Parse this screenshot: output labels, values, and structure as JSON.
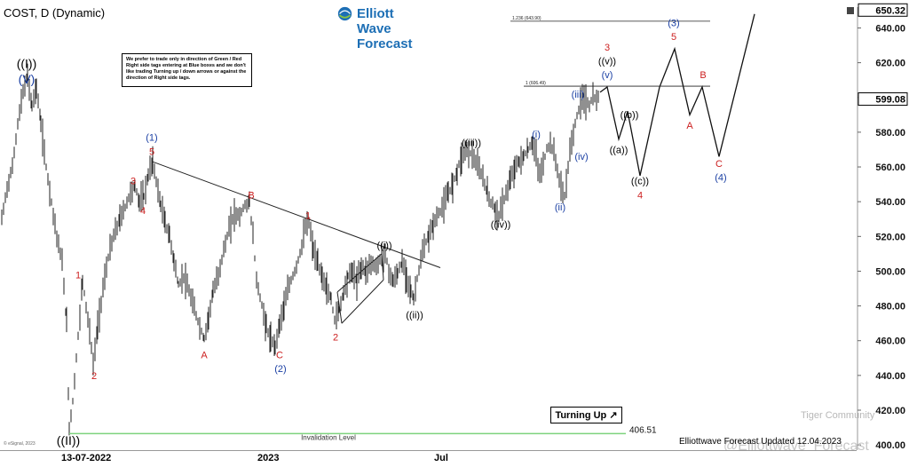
{
  "header": {
    "symbol_label": "COST, D (Dynamic)",
    "brand": "Elliott Wave Forecast",
    "note": "We prefer to trade only in direction of Green / Red Right side tags entering at Blue boxes and we don't like trading Turning up / down arrows or against the direction of Right side tags.",
    "turning_label": "Turning Up",
    "footer": "Elliottwave Forecast Updated 12.04.2023",
    "watermark1": "Tiger Community",
    "watermark2": "@Elliottwave_Forecast",
    "copyright": "© eSignal, 2023",
    "logo_small": "Elliottwave"
  },
  "colors": {
    "red": "#cc1f1f",
    "blue": "#1a3fa3",
    "black": "#000000",
    "green": "#7ed37e",
    "brand": "#1d6fb5"
  },
  "chart_data": {
    "type": "candlestick",
    "symbol": "COST",
    "timeframe": "D",
    "ylim": [
      397,
      652
    ],
    "y_ticks": [
      400,
      420,
      440,
      460,
      480,
      500,
      520,
      540,
      560,
      580,
      600,
      620,
      640
    ],
    "y_tick_labels": [
      "400.00",
      "420.00",
      "440.00",
      "460.00",
      "480.00",
      "500.00",
      "520.00",
      "540.00",
      "560.00",
      "580.00",
      "600.00",
      "620.00",
      "640.00"
    ],
    "x_tick_labels": [
      {
        "label": "13-07-2022",
        "t": 97
      },
      {
        "label": "2023",
        "t": 302
      },
      {
        "label": "Jul",
        "t": 497
      }
    ],
    "price_tags": [
      {
        "label": "650.32",
        "value": 650.32
      },
      {
        "label": "599.08",
        "value": 599.08
      }
    ],
    "x_range": [
      0,
      965
    ],
    "price_path": [
      [
        2,
        530
      ],
      [
        8,
        548
      ],
      [
        14,
        560
      ],
      [
        20,
        585
      ],
      [
        26,
        603
      ],
      [
        31,
        612
      ],
      [
        36,
        595
      ],
      [
        41,
        606
      ],
      [
        46,
        585
      ],
      [
        52,
        560
      ],
      [
        58,
        540
      ],
      [
        64,
        520
      ],
      [
        70,
        505
      ],
      [
        75,
        470
      ],
      [
        78,
        410
      ],
      [
        82,
        425
      ],
      [
        86,
        450
      ],
      [
        90,
        475
      ],
      [
        93,
        495
      ],
      [
        97,
        480
      ],
      [
        101,
        465
      ],
      [
        105,
        446
      ],
      [
        110,
        468
      ],
      [
        116,
        490
      ],
      [
        122,
        508
      ],
      [
        128,
        520
      ],
      [
        135,
        530
      ],
      [
        141,
        537
      ],
      [
        147,
        545
      ],
      [
        152,
        549
      ],
      [
        157,
        540
      ],
      [
        162,
        543
      ],
      [
        167,
        555
      ],
      [
        172,
        563
      ],
      [
        176,
        552
      ],
      [
        181,
        538
      ],
      [
        186,
        528
      ],
      [
        191,
        520
      ],
      [
        196,
        506
      ],
      [
        201,
        492
      ],
      [
        207,
        497
      ],
      [
        213,
        488
      ],
      [
        219,
        478
      ],
      [
        225,
        468
      ],
      [
        230,
        461
      ],
      [
        235,
        474
      ],
      [
        240,
        488
      ],
      [
        246,
        498
      ],
      [
        252,
        512
      ],
      [
        258,
        524
      ],
      [
        264,
        533
      ],
      [
        270,
        532
      ],
      [
        276,
        538
      ],
      [
        281,
        540
      ],
      [
        285,
        520
      ],
      [
        289,
        495
      ],
      [
        295,
        480
      ],
      [
        300,
        468
      ],
      [
        305,
        460
      ],
      [
        310,
        457
      ],
      [
        315,
        470
      ],
      [
        320,
        480
      ],
      [
        326,
        492
      ],
      [
        332,
        500
      ],
      [
        338,
        510
      ],
      [
        344,
        525
      ],
      [
        348,
        528
      ],
      [
        353,
        512
      ],
      [
        358,
        504
      ],
      [
        363,
        497
      ],
      [
        368,
        490
      ],
      [
        373,
        484
      ],
      [
        377,
        472
      ],
      [
        382,
        478
      ],
      [
        387,
        488
      ],
      [
        392,
        497
      ],
      [
        397,
        500
      ],
      [
        402,
        494
      ],
      [
        407,
        503
      ],
      [
        412,
        500
      ],
      [
        418,
        505
      ],
      [
        424,
        502
      ],
      [
        430,
        509
      ],
      [
        434,
        510
      ],
      [
        438,
        500
      ],
      [
        443,
        494
      ],
      [
        448,
        499
      ],
      [
        453,
        505
      ],
      [
        458,
        497
      ],
      [
        463,
        488
      ],
      [
        466,
        484
      ],
      [
        470,
        496
      ],
      [
        474,
        506
      ],
      [
        478,
        514
      ],
      [
        483,
        520
      ],
      [
        488,
        527
      ],
      [
        494,
        533
      ],
      [
        500,
        538
      ],
      [
        505,
        545
      ],
      [
        510,
        550
      ],
      [
        515,
        558
      ],
      [
        520,
        566
      ],
      [
        526,
        570
      ],
      [
        532,
        567
      ],
      [
        538,
        560
      ],
      [
        544,
        554
      ],
      [
        549,
        545
      ],
      [
        553,
        540
      ],
      [
        558,
        535
      ],
      [
        562,
        532
      ],
      [
        566,
        538
      ],
      [
        570,
        545
      ],
      [
        575,
        552
      ],
      [
        580,
        560
      ],
      [
        585,
        563
      ],
      [
        590,
        566
      ],
      [
        595,
        570
      ],
      [
        600,
        574
      ],
      [
        604,
        566
      ],
      [
        608,
        555
      ],
      [
        612,
        562
      ],
      [
        616,
        570
      ],
      [
        620,
        574
      ],
      [
        624,
        568
      ],
      [
        628,
        558
      ],
      [
        632,
        548
      ],
      [
        636,
        543
      ],
      [
        640,
        560
      ],
      [
        644,
        575
      ],
      [
        648,
        585
      ],
      [
        652,
        593
      ],
      [
        656,
        600
      ],
      [
        660,
        598
      ],
      [
        664,
        595
      ],
      [
        668,
        601
      ],
      [
        672,
        597
      ],
      [
        676,
        603
      ]
    ],
    "projection_path": [
      [
        676,
        603
      ],
      [
        684,
        606
      ],
      [
        697,
        576
      ],
      [
        707,
        592
      ],
      [
        721,
        555
      ],
      [
        743,
        606
      ],
      [
        760,
        628
      ],
      [
        777,
        590
      ],
      [
        791,
        606
      ],
      [
        810,
        566
      ],
      [
        850,
        648
      ]
    ],
    "trendline": [
      [
        172,
        563
      ],
      [
        496,
        502
      ]
    ],
    "channel_lines": [
      [
        [
          380,
          488
        ],
        [
          430,
          510
        ]
      ],
      [
        [
          385,
          470
        ],
        [
          432,
          495
        ]
      ],
      [
        [
          380,
          488
        ],
        [
          385,
          470
        ]
      ],
      [
        [
          430,
          510
        ],
        [
          432,
          495
        ]
      ]
    ],
    "fib_levels": [
      {
        "label": "1.236 (643.90)",
        "value": 643.9,
        "x_start": 575,
        "x_end": 800
      },
      {
        "label": "1 (606.49)",
        "value": 606.49,
        "x_start": 590,
        "x_end": 800
      }
    ],
    "invalidation": {
      "label": "Invalidation Level",
      "value_label": "406.51",
      "value": 406.51,
      "x_start": 78,
      "x_end": 705
    },
    "wave_labels": [
      {
        "text": "((I))",
        "t": 30,
        "v": 617,
        "color": "black",
        "size": 14
      },
      {
        "text": "(V)",
        "t": 30,
        "v": 608,
        "color": "blue",
        "size": 14
      },
      {
        "text": "((II))",
        "t": 77,
        "v": 400,
        "color": "black",
        "size": 14
      },
      {
        "text": "1",
        "t": 88,
        "v": 496,
        "color": "red",
        "size": 11
      },
      {
        "text": "2",
        "t": 106,
        "v": 438,
        "color": "red",
        "size": 11
      },
      {
        "text": "3",
        "t": 150,
        "v": 550,
        "color": "red",
        "size": 11
      },
      {
        "text": "4",
        "t": 161,
        "v": 533,
        "color": "red",
        "size": 11
      },
      {
        "text": "(1)",
        "t": 171,
        "v": 575,
        "color": "blue",
        "size": 11
      },
      {
        "text": "5",
        "t": 171,
        "v": 567,
        "color": "red",
        "size": 11
      },
      {
        "text": "A",
        "t": 230,
        "v": 450,
        "color": "red",
        "size": 11
      },
      {
        "text": "B",
        "t": 283,
        "v": 542,
        "color": "red",
        "size": 11
      },
      {
        "text": "C",
        "t": 315,
        "v": 450,
        "color": "red",
        "size": 11
      },
      {
        "text": "(2)",
        "t": 316,
        "v": 442,
        "color": "blue",
        "size": 11
      },
      {
        "text": "1",
        "t": 347,
        "v": 530,
        "color": "red",
        "size": 11
      },
      {
        "text": "2",
        "t": 378,
        "v": 460,
        "color": "red",
        "size": 11
      },
      {
        "text": "((i))",
        "t": 433,
        "v": 513,
        "color": "black",
        "size": 11
      },
      {
        "text": "((ii))",
        "t": 467,
        "v": 473,
        "color": "black",
        "size": 11
      },
      {
        "text": "((iii))",
        "t": 531,
        "v": 572,
        "color": "black",
        "size": 11
      },
      {
        "text": "((iv))",
        "t": 564,
        "v": 525,
        "color": "black",
        "size": 11
      },
      {
        "text": "(i)",
        "t": 604,
        "v": 577,
        "color": "blue",
        "size": 11
      },
      {
        "text": "(ii)",
        "t": 631,
        "v": 535,
        "color": "blue",
        "size": 11
      },
      {
        "text": "(iii)",
        "t": 651,
        "v": 600,
        "color": "blue",
        "size": 11
      },
      {
        "text": "(iv)",
        "t": 655,
        "v": 564,
        "color": "blue",
        "size": 11
      },
      {
        "text": "3",
        "t": 684,
        "v": 627,
        "color": "red",
        "size": 11
      },
      {
        "text": "((v))",
        "t": 684,
        "v": 619,
        "color": "black",
        "size": 11
      },
      {
        "text": "(v)",
        "t": 684,
        "v": 611,
        "color": "blue",
        "size": 11
      },
      {
        "text": "((a))",
        "t": 697,
        "v": 568,
        "color": "black",
        "size": 11
      },
      {
        "text": "((b))",
        "t": 709,
        "v": 588,
        "color": "black",
        "size": 11
      },
      {
        "text": "((c))",
        "t": 721,
        "v": 550,
        "color": "black",
        "size": 11
      },
      {
        "text": "4",
        "t": 721,
        "v": 542,
        "color": "red",
        "size": 11
      },
      {
        "text": "(3)",
        "t": 759,
        "v": 641,
        "color": "blue",
        "size": 11
      },
      {
        "text": "5",
        "t": 759,
        "v": 633,
        "color": "red",
        "size": 11
      },
      {
        "text": "A",
        "t": 777,
        "v": 582,
        "color": "red",
        "size": 11
      },
      {
        "text": "B",
        "t": 792,
        "v": 611,
        "color": "red",
        "size": 11
      },
      {
        "text": "C",
        "t": 810,
        "v": 560,
        "color": "red",
        "size": 11
      },
      {
        "text": "(4)",
        "t": 812,
        "v": 552,
        "color": "blue",
        "size": 11
      }
    ]
  }
}
